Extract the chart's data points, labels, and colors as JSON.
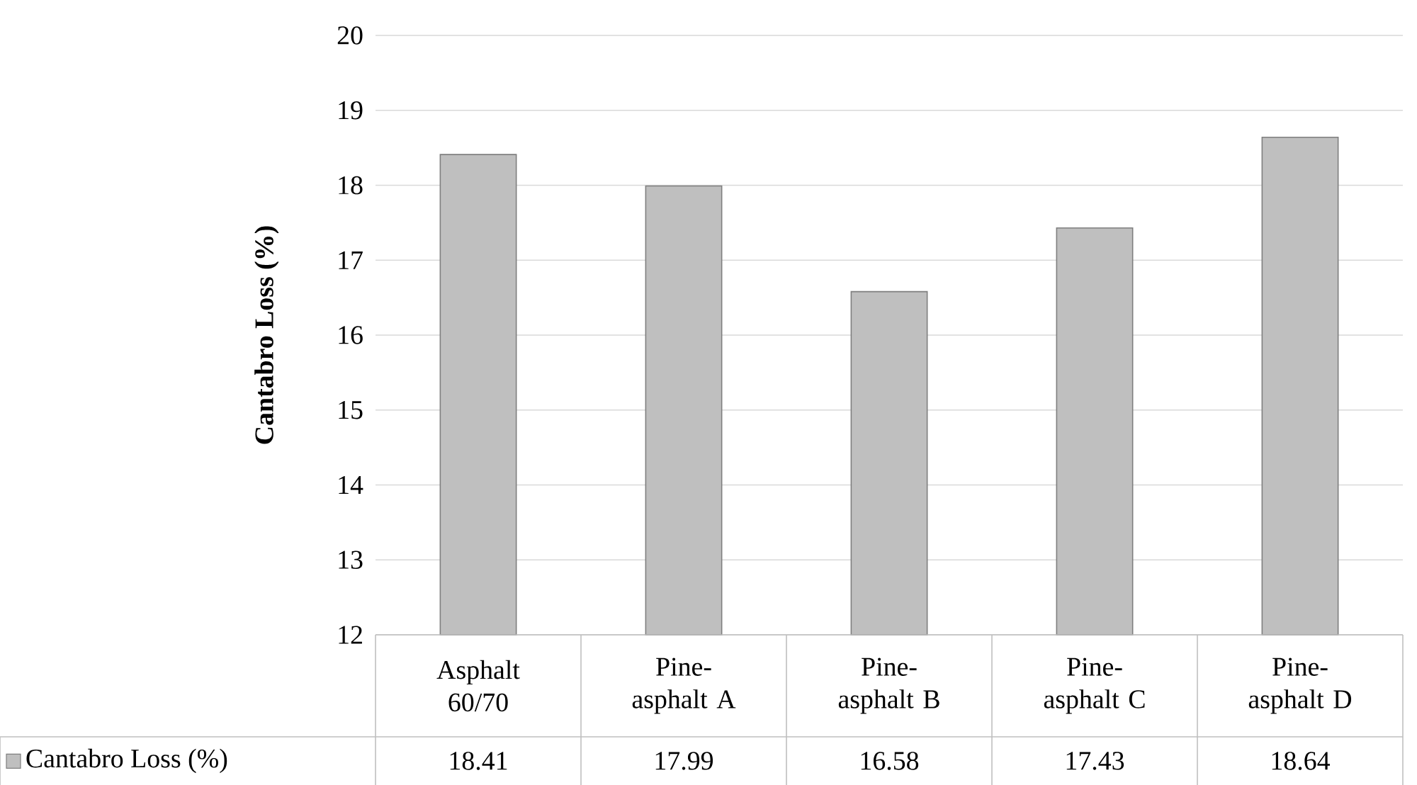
{
  "chart_data": {
    "type": "bar",
    "ylabel": "Cantabro Loss (%)",
    "categories": [
      "Asphalt 60/70",
      "Pine-asphalt A",
      "Pine-asphalt B",
      "Pine-asphalt C",
      "Pine-asphalt D"
    ],
    "series": [
      {
        "name": "Cantabro Loss (%)",
        "color": "#bfbfbf",
        "values": [
          18.41,
          17.99,
          16.58,
          17.43,
          18.64
        ]
      }
    ],
    "ylim": [
      12,
      20
    ],
    "yticks": [
      12,
      13,
      14,
      15,
      16,
      17,
      18,
      19,
      20
    ],
    "grid": "y",
    "legend": "bottom",
    "data_labels": true
  }
}
